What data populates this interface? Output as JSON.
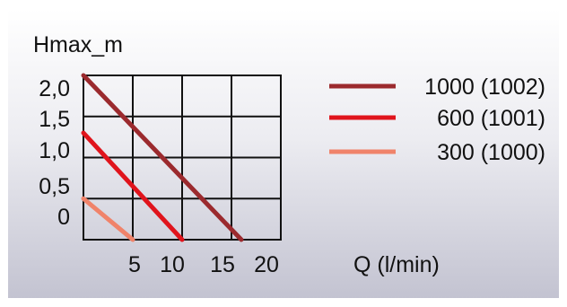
{
  "chart_data": {
    "type": "line",
    "ylabel": "Hmax_m",
    "xlabel": "Q (l/min)",
    "xlim": [
      0,
      20
    ],
    "ylim": [
      0,
      2.0
    ],
    "x_ticks": [
      5,
      10,
      15,
      20
    ],
    "x_tick_labels": [
      "5",
      "10",
      "15",
      "20"
    ],
    "y_ticks": [
      2.0,
      1.5,
      1.0,
      0.5,
      0
    ],
    "y_tick_labels": [
      "2,0",
      "1,5",
      "1,0",
      "0,5",
      "0"
    ],
    "grid": true,
    "legend_position": "right",
    "series": [
      {
        "name": "1000 (1002)",
        "color": "#9b2a2e",
        "x": [
          0,
          16
        ],
        "y": [
          2.0,
          0
        ]
      },
      {
        "name": "600 (1001)",
        "color": "#e0141c",
        "x": [
          0,
          10
        ],
        "y": [
          1.3,
          0
        ]
      },
      {
        "name": "300 (1000)",
        "color": "#f0836a",
        "x": [
          0,
          5
        ],
        "y": [
          0.5,
          0
        ]
      }
    ]
  }
}
